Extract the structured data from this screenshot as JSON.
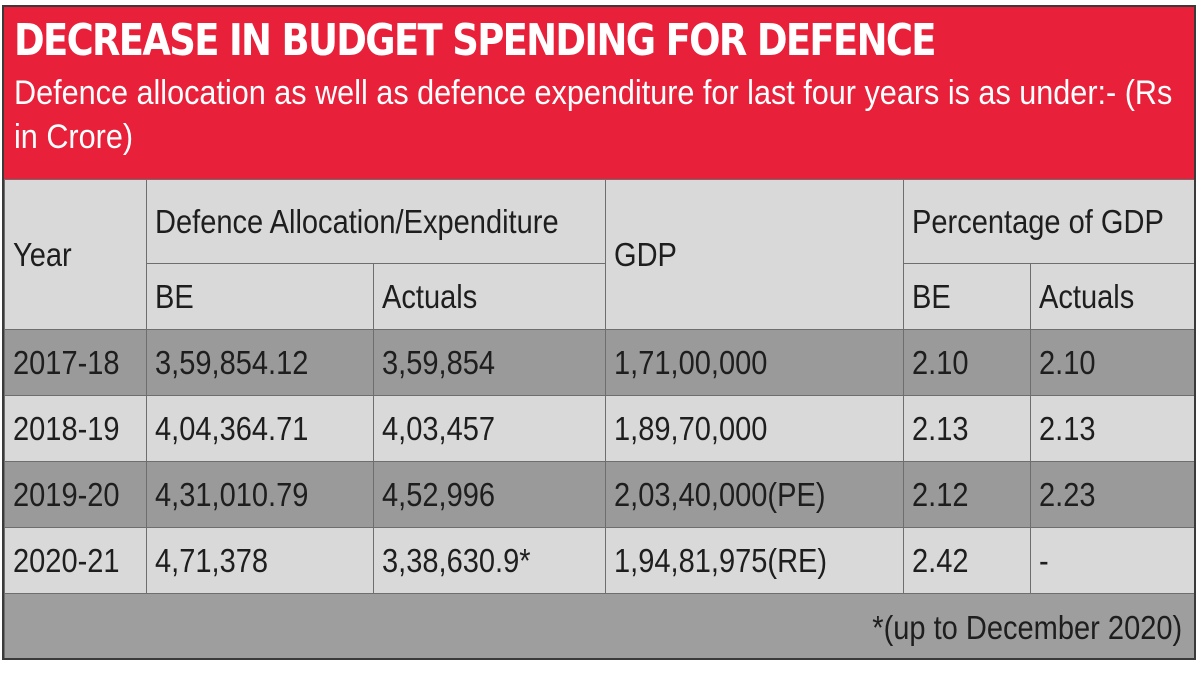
{
  "chart_data": {
    "type": "table",
    "title": "DECREASE IN BUDGET SPENDING FOR DEFENCE",
    "subtitle": "Defence allocation as well as defence expenditure for last four years is as under:- (Rs in Crore)",
    "header": {
      "year": "Year",
      "allocation": "Defence Allocation/Expenditure",
      "gdp": "GDP",
      "percentage": "Percentage of GDP",
      "be": "BE",
      "actuals": "Actuals"
    },
    "rows": [
      {
        "year": "2017-18",
        "alloc_be": "3,59,854.12",
        "alloc_actuals": "3,59,854",
        "gdp": "1,71,00,000",
        "pct_be": "2.10",
        "pct_actuals": "2.10"
      },
      {
        "year": "2018-19",
        "alloc_be": "4,04,364.71",
        "alloc_actuals": "4,03,457",
        "gdp": "1,89,70,000",
        "pct_be": "2.13",
        "pct_actuals": "2.13"
      },
      {
        "year": "2019-20",
        "alloc_be": "4,31,010.79",
        "alloc_actuals": "4,52,996",
        "gdp": "2,03,40,000(PE)",
        "pct_be": "2.12",
        "pct_actuals": "2.23"
      },
      {
        "year": "2020-21",
        "alloc_be": "4,71,378",
        "alloc_actuals": "3,38,630.9*",
        "gdp": "1,94,81,975(RE)",
        "pct_be": "2.42",
        "pct_actuals": "-"
      }
    ],
    "footnote": "*(up to December 2020)"
  },
  "colors": {
    "header_red": "#e8203a",
    "row_dark": "#9a9a9a",
    "row_light": "#d9d9d9"
  }
}
